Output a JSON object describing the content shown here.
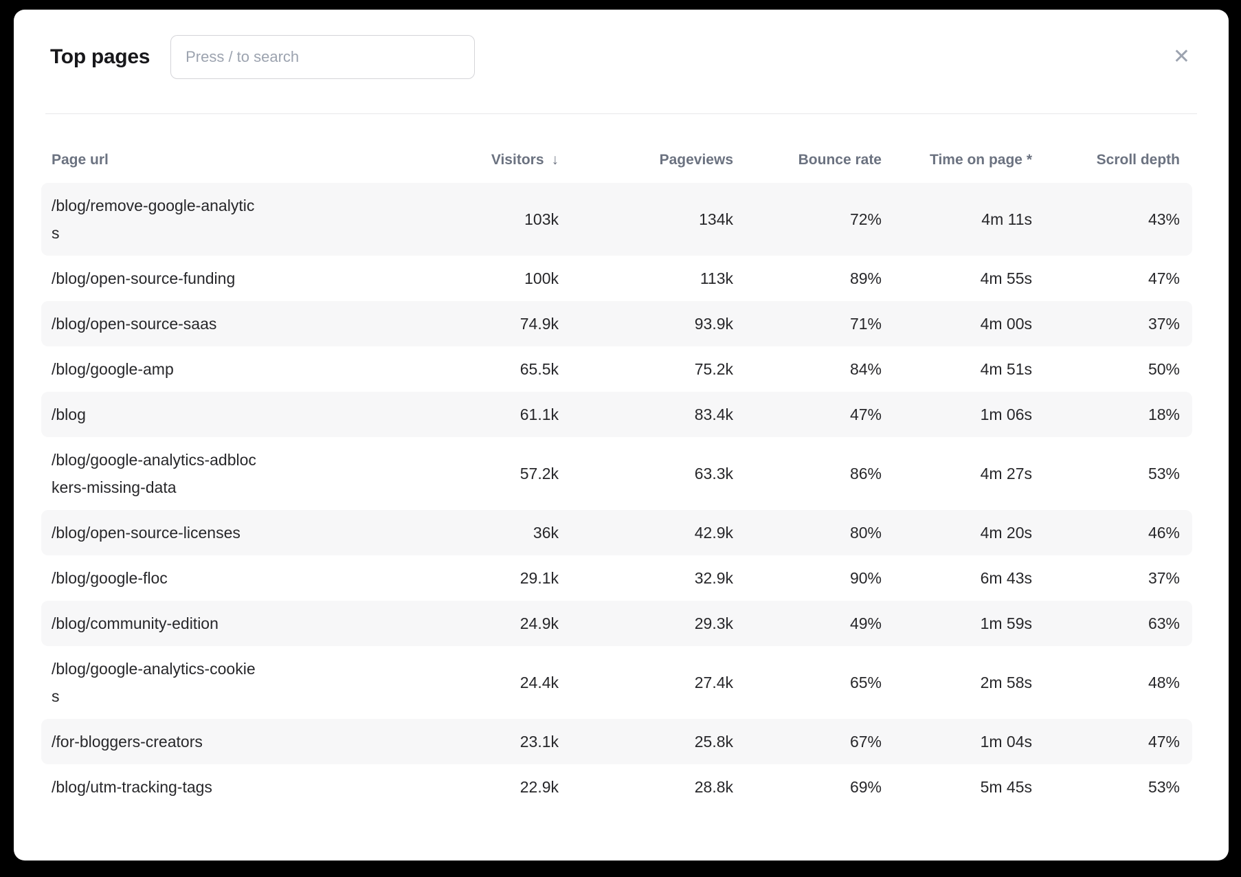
{
  "modal": {
    "title": "Top pages",
    "search": {
      "placeholder": "Press / to search",
      "value": ""
    },
    "close_glyph": "✕"
  },
  "table": {
    "columns": [
      "Page url",
      "Visitors",
      "Pageviews",
      "Bounce rate",
      "Time on page *",
      "Scroll depth"
    ],
    "sort": {
      "column": "Visitors",
      "direction": "desc",
      "arrow": "↓"
    },
    "rows": [
      {
        "url": "/blog/remove-google-analytics",
        "visitors": "103k",
        "pageviews": "134k",
        "bounce_rate": "72%",
        "time_on_page": "4m 11s",
        "scroll_depth": "43%"
      },
      {
        "url": "/blog/open-source-funding",
        "visitors": "100k",
        "pageviews": "113k",
        "bounce_rate": "89%",
        "time_on_page": "4m 55s",
        "scroll_depth": "47%"
      },
      {
        "url": "/blog/open-source-saas",
        "visitors": "74.9k",
        "pageviews": "93.9k",
        "bounce_rate": "71%",
        "time_on_page": "4m 00s",
        "scroll_depth": "37%"
      },
      {
        "url": "/blog/google-amp",
        "visitors": "65.5k",
        "pageviews": "75.2k",
        "bounce_rate": "84%",
        "time_on_page": "4m 51s",
        "scroll_depth": "50%"
      },
      {
        "url": "/blog",
        "visitors": "61.1k",
        "pageviews": "83.4k",
        "bounce_rate": "47%",
        "time_on_page": "1m 06s",
        "scroll_depth": "18%"
      },
      {
        "url": "/blog/google-analytics-adblockers-missing-data",
        "visitors": "57.2k",
        "pageviews": "63.3k",
        "bounce_rate": "86%",
        "time_on_page": "4m 27s",
        "scroll_depth": "53%"
      },
      {
        "url": "/blog/open-source-licenses",
        "visitors": "36k",
        "pageviews": "42.9k",
        "bounce_rate": "80%",
        "time_on_page": "4m 20s",
        "scroll_depth": "46%"
      },
      {
        "url": "/blog/google-floc",
        "visitors": "29.1k",
        "pageviews": "32.9k",
        "bounce_rate": "90%",
        "time_on_page": "6m 43s",
        "scroll_depth": "37%"
      },
      {
        "url": "/blog/community-edition",
        "visitors": "24.9k",
        "pageviews": "29.3k",
        "bounce_rate": "49%",
        "time_on_page": "1m 59s",
        "scroll_depth": "63%"
      },
      {
        "url": "/blog/google-analytics-cookies",
        "visitors": "24.4k",
        "pageviews": "27.4k",
        "bounce_rate": "65%",
        "time_on_page": "2m 58s",
        "scroll_depth": "48%"
      },
      {
        "url": "/for-bloggers-creators",
        "visitors": "23.1k",
        "pageviews": "25.8k",
        "bounce_rate": "67%",
        "time_on_page": "1m 04s",
        "scroll_depth": "47%"
      },
      {
        "url": "/blog/utm-tracking-tags",
        "visitors": "22.9k",
        "pageviews": "28.8k",
        "bounce_rate": "69%",
        "time_on_page": "5m 45s",
        "scroll_depth": "53%"
      }
    ]
  },
  "colors": {
    "stripe": "#f7f7f8",
    "header_text": "#6b7280",
    "cell_text": "#27272a",
    "divider": "#e8e8ea",
    "placeholder": "#9ca3af",
    "backdrop": "#000000",
    "modal_bg": "#ffffff"
  }
}
